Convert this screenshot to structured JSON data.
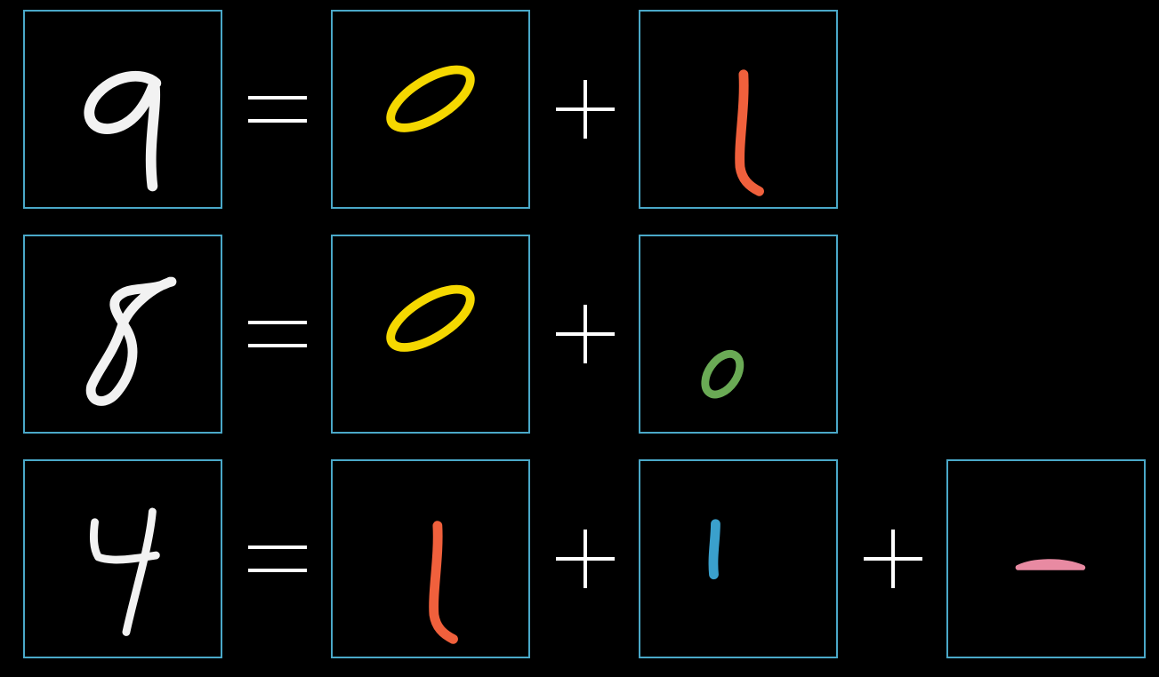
{
  "colors": {
    "background": "#000000",
    "frame": "#4aa8c8",
    "operator": "#ffffff",
    "digit": "#f2f2f2",
    "part_yellow": "#f5d800",
    "part_red": "#f0603c",
    "part_green": "#6aaa55",
    "part_blue": "#3aa0cc",
    "part_pink": "#e88aa2"
  },
  "rows": [
    {
      "digit": "9-icon",
      "operator": "equals-icon",
      "parts": [
        "yellow-tilted-loop-icon",
        "red-vertical-stroke-icon"
      ]
    },
    {
      "digit": "8-icon",
      "operator": "equals-icon",
      "parts": [
        "yellow-tilted-loop-icon",
        "green-small-loop-icon"
      ]
    },
    {
      "digit": "4-icon",
      "operator": "equals-icon",
      "parts": [
        "red-vertical-stroke-icon",
        "blue-short-stroke-icon",
        "pink-horizontal-bar-icon"
      ]
    }
  ]
}
